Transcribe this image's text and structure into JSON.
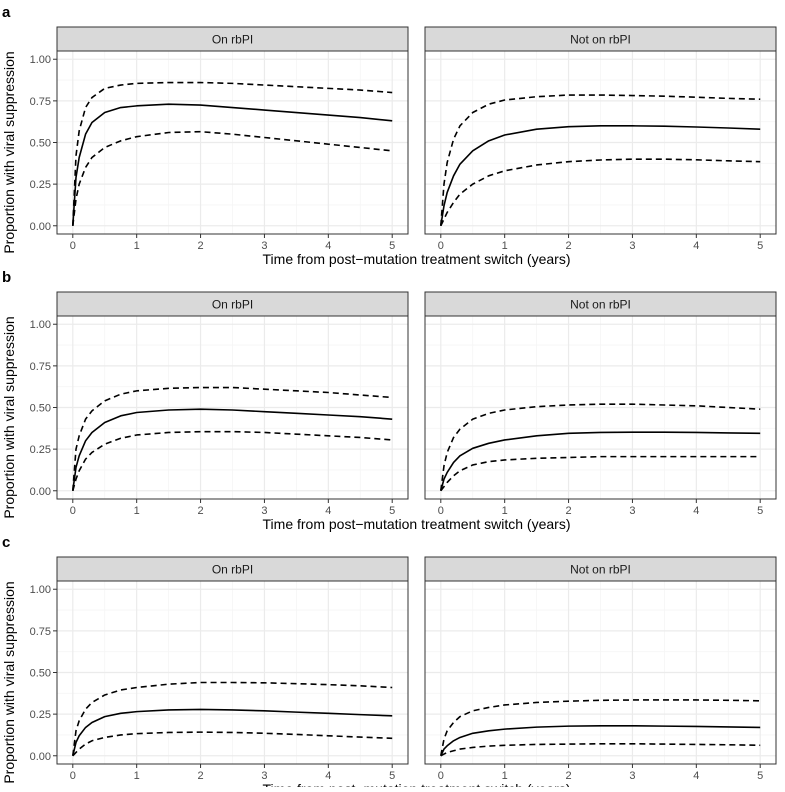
{
  "figure": {
    "panels": [
      {
        "label": "a",
        "ylabel": "Proportion with viral suppression",
        "xlabel": "Time from post−mutation treatment switch (years)",
        "facets": [
          {
            "title": "On rbPI"
          },
          {
            "title": "Not on rbPI"
          }
        ]
      },
      {
        "label": "b",
        "ylabel": "Proportion with viral suppression",
        "xlabel": "Time from post−mutation treatment switch (years)",
        "facets": [
          {
            "title": "On rbPI"
          },
          {
            "title": "Not on rbPI"
          }
        ]
      },
      {
        "label": "c",
        "ylabel": "Proportion with viral suppression",
        "xlabel": "Time from post−mutation treatment switch (years)",
        "facets": [
          {
            "title": "On rbPI"
          },
          {
            "title": "Not on rbPI"
          }
        ]
      }
    ]
  },
  "chart_data": [
    {
      "type": "line",
      "panel": "a",
      "facet": "On rbPI",
      "xlim": [
        0,
        5
      ],
      "ylim": [
        0,
        1
      ],
      "xticks": [
        "0",
        "1",
        "2",
        "3",
        "4",
        "5"
      ],
      "yticks": [
        "0.00",
        "0.25",
        "0.50",
        "0.75",
        "1.00"
      ],
      "grid": true,
      "x": [
        0,
        0.05,
        0.1,
        0.2,
        0.3,
        0.5,
        0.75,
        1,
        1.5,
        2,
        2.5,
        3,
        3.5,
        4,
        4.5,
        5
      ],
      "series": [
        {
          "style": "solid",
          "values": [
            0,
            0.29,
            0.41,
            0.55,
            0.62,
            0.68,
            0.71,
            0.72,
            0.73,
            0.725,
            0.71,
            0.695,
            0.68,
            0.665,
            0.65,
            0.63
          ]
        },
        {
          "style": "dashed",
          "values": [
            0,
            0.42,
            0.57,
            0.71,
            0.77,
            0.825,
            0.845,
            0.855,
            0.86,
            0.86,
            0.855,
            0.845,
            0.835,
            0.825,
            0.815,
            0.8
          ]
        },
        {
          "style": "dashed",
          "values": [
            0,
            0.16,
            0.25,
            0.35,
            0.41,
            0.47,
            0.51,
            0.535,
            0.56,
            0.565,
            0.55,
            0.53,
            0.51,
            0.49,
            0.47,
            0.45
          ]
        }
      ]
    },
    {
      "type": "line",
      "panel": "a",
      "facet": "Not on rbPI",
      "xlim": [
        0,
        5
      ],
      "ylim": [
        0,
        1
      ],
      "xticks": [
        "0",
        "1",
        "2",
        "3",
        "4",
        "5"
      ],
      "yticks": [
        "0.00",
        "0.25",
        "0.50",
        "0.75",
        "1.00"
      ],
      "grid": true,
      "x": [
        0,
        0.05,
        0.1,
        0.2,
        0.3,
        0.5,
        0.75,
        1,
        1.5,
        2,
        2.5,
        3,
        3.5,
        4,
        4.5,
        5
      ],
      "series": [
        {
          "style": "solid",
          "values": [
            0,
            0.12,
            0.2,
            0.3,
            0.37,
            0.45,
            0.51,
            0.545,
            0.58,
            0.595,
            0.6,
            0.6,
            0.598,
            0.593,
            0.587,
            0.58
          ]
        },
        {
          "style": "dashed",
          "values": [
            0,
            0.25,
            0.38,
            0.52,
            0.6,
            0.68,
            0.73,
            0.755,
            0.775,
            0.785,
            0.785,
            0.782,
            0.778,
            0.772,
            0.765,
            0.76
          ]
        },
        {
          "style": "dashed",
          "values": [
            0,
            0.04,
            0.08,
            0.14,
            0.19,
            0.25,
            0.3,
            0.33,
            0.365,
            0.385,
            0.395,
            0.4,
            0.4,
            0.396,
            0.39,
            0.385
          ]
        }
      ]
    },
    {
      "type": "line",
      "panel": "b",
      "facet": "On rbPI",
      "xlim": [
        0,
        5
      ],
      "ylim": [
        0,
        1
      ],
      "xticks": [
        "0",
        "1",
        "2",
        "3",
        "4",
        "5"
      ],
      "yticks": [
        "0.00",
        "0.25",
        "0.50",
        "0.75",
        "1.00"
      ],
      "grid": true,
      "x": [
        0,
        0.05,
        0.1,
        0.2,
        0.3,
        0.5,
        0.75,
        1,
        1.5,
        2,
        2.5,
        3,
        3.5,
        4,
        4.5,
        5
      ],
      "series": [
        {
          "style": "solid",
          "values": [
            0,
            0.14,
            0.21,
            0.3,
            0.35,
            0.41,
            0.45,
            0.47,
            0.485,
            0.49,
            0.485,
            0.475,
            0.465,
            0.455,
            0.445,
            0.43
          ]
        },
        {
          "style": "dashed",
          "values": [
            0,
            0.25,
            0.33,
            0.43,
            0.48,
            0.54,
            0.58,
            0.6,
            0.615,
            0.62,
            0.62,
            0.61,
            0.6,
            0.59,
            0.575,
            0.56
          ]
        },
        {
          "style": "dashed",
          "values": [
            0,
            0.07,
            0.12,
            0.19,
            0.23,
            0.28,
            0.315,
            0.335,
            0.35,
            0.355,
            0.355,
            0.35,
            0.34,
            0.33,
            0.32,
            0.305
          ]
        }
      ]
    },
    {
      "type": "line",
      "panel": "b",
      "facet": "Not on rbPI",
      "xlim": [
        0,
        5
      ],
      "ylim": [
        0,
        1
      ],
      "xticks": [
        "0",
        "1",
        "2",
        "3",
        "4",
        "5"
      ],
      "yticks": [
        "0.00",
        "0.25",
        "0.50",
        "0.75",
        "1.00"
      ],
      "grid": true,
      "x": [
        0,
        0.05,
        0.1,
        0.2,
        0.3,
        0.5,
        0.75,
        1,
        1.5,
        2,
        2.5,
        3,
        3.5,
        4,
        4.5,
        5
      ],
      "series": [
        {
          "style": "solid",
          "values": [
            0,
            0.07,
            0.11,
            0.17,
            0.21,
            0.255,
            0.285,
            0.305,
            0.33,
            0.345,
            0.35,
            0.352,
            0.352,
            0.35,
            0.347,
            0.345
          ]
        },
        {
          "style": "dashed",
          "values": [
            0,
            0.15,
            0.23,
            0.32,
            0.37,
            0.43,
            0.465,
            0.485,
            0.505,
            0.515,
            0.52,
            0.52,
            0.515,
            0.51,
            0.5,
            0.49
          ]
        },
        {
          "style": "dashed",
          "values": [
            0,
            0.025,
            0.05,
            0.09,
            0.12,
            0.155,
            0.175,
            0.185,
            0.195,
            0.2,
            0.205,
            0.205,
            0.205,
            0.205,
            0.205,
            0.205
          ]
        }
      ]
    },
    {
      "type": "line",
      "panel": "c",
      "facet": "On rbPI",
      "xlim": [
        0,
        5
      ],
      "ylim": [
        0,
        1
      ],
      "xticks": [
        "0",
        "1",
        "2",
        "3",
        "4",
        "5"
      ],
      "yticks": [
        "0.00",
        "0.25",
        "0.50",
        "0.75",
        "1.00"
      ],
      "grid": true,
      "x": [
        0,
        0.05,
        0.1,
        0.2,
        0.3,
        0.5,
        0.75,
        1,
        1.5,
        2,
        2.5,
        3,
        3.5,
        4,
        4.5,
        5
      ],
      "series": [
        {
          "style": "solid",
          "values": [
            0,
            0.08,
            0.12,
            0.17,
            0.2,
            0.235,
            0.255,
            0.265,
            0.275,
            0.278,
            0.275,
            0.27,
            0.262,
            0.255,
            0.247,
            0.24
          ]
        },
        {
          "style": "dashed",
          "values": [
            0,
            0.15,
            0.21,
            0.28,
            0.32,
            0.365,
            0.395,
            0.41,
            0.43,
            0.44,
            0.44,
            0.438,
            0.433,
            0.427,
            0.42,
            0.41
          ]
        },
        {
          "style": "dashed",
          "values": [
            0,
            0.02,
            0.04,
            0.07,
            0.09,
            0.11,
            0.125,
            0.133,
            0.14,
            0.142,
            0.14,
            0.135,
            0.128,
            0.12,
            0.112,
            0.105
          ]
        }
      ]
    },
    {
      "type": "line",
      "panel": "c",
      "facet": "Not on rbPI",
      "xlim": [
        0,
        5
      ],
      "ylim": [
        0,
        1
      ],
      "xticks": [
        "0",
        "1",
        "2",
        "3",
        "4",
        "5"
      ],
      "yticks": [
        "0.00",
        "0.25",
        "0.50",
        "0.75",
        "1.00"
      ],
      "grid": true,
      "x": [
        0,
        0.05,
        0.1,
        0.2,
        0.3,
        0.5,
        0.75,
        1,
        1.5,
        2,
        2.5,
        3,
        3.5,
        4,
        4.5,
        5
      ],
      "series": [
        {
          "style": "solid",
          "values": [
            0,
            0.04,
            0.06,
            0.09,
            0.11,
            0.135,
            0.15,
            0.16,
            0.172,
            0.178,
            0.18,
            0.18,
            0.178,
            0.176,
            0.173,
            0.17
          ]
        },
        {
          "style": "dashed",
          "values": [
            0,
            0.1,
            0.15,
            0.2,
            0.235,
            0.27,
            0.29,
            0.305,
            0.32,
            0.328,
            0.333,
            0.335,
            0.335,
            0.335,
            0.333,
            0.33
          ]
        },
        {
          "style": "dashed",
          "values": [
            0,
            0.01,
            0.02,
            0.03,
            0.04,
            0.05,
            0.058,
            0.063,
            0.068,
            0.07,
            0.072,
            0.072,
            0.07,
            0.068,
            0.066,
            0.063
          ]
        }
      ]
    }
  ]
}
